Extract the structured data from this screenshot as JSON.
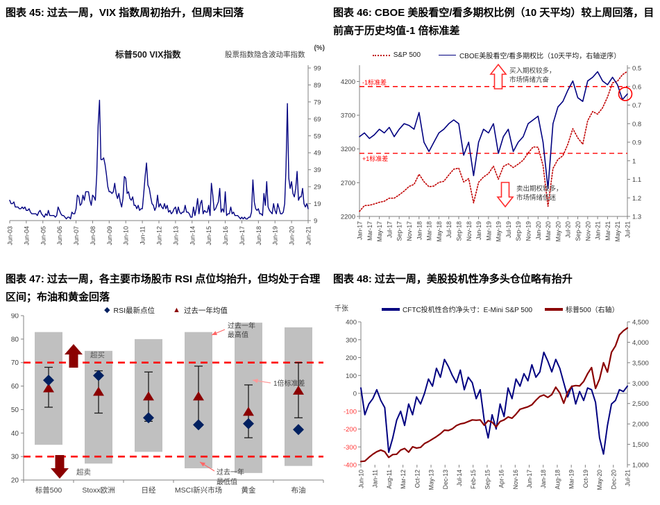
{
  "chart_data": [
    {
      "id": "fig45",
      "type": "line",
      "title_label": "图表 45:",
      "title": "过去一周，VIX 指数周初抬升，但周末回落",
      "series_title": "标普500 VIX指数",
      "subtitle": "股票指数隐含波动率指数",
      "unit": "(%)",
      "ylim": [
        9,
        99
      ],
      "yticks": [
        99,
        89,
        79,
        69,
        59,
        49,
        39,
        29,
        19,
        9
      ],
      "y_axis_side": "right",
      "x_tick_labels": [
        "Jun-03",
        "Jun-04",
        "Jun-05",
        "Jun-06",
        "Jun-07",
        "Jun-08",
        "Jun-09",
        "Jun-10",
        "Jun-11",
        "Jun-12",
        "Jun-13",
        "Jun-14",
        "Jun-15",
        "Jun-16",
        "Jun-17",
        "Jun-18",
        "Jun-19",
        "Jun-20",
        "Jun-21"
      ],
      "series": [
        {
          "name": "标普500 VIX指数",
          "color": "#000080",
          "freq": "monthly, Jun-2003 to Jun-2021",
          "values": [
            21,
            19,
            19,
            20,
            17,
            17,
            17,
            16,
            16,
            17,
            16,
            17,
            15,
            15,
            16,
            14,
            13,
            13,
            13,
            13,
            12,
            14,
            15,
            13,
            12,
            11,
            13,
            12,
            15,
            12,
            12,
            12,
            12,
            11,
            12,
            17,
            15,
            13,
            12,
            12,
            11,
            10,
            11,
            11,
            10,
            14,
            13,
            13,
            16,
            24,
            23,
            18,
            19,
            24,
            21,
            26,
            26,
            26,
            21,
            18,
            24,
            23,
            21,
            36,
            65,
            80,
            45,
            45,
            46,
            42,
            36,
            29,
            26,
            26,
            25,
            26,
            31,
            25,
            22,
            25,
            20,
            17,
            22,
            35,
            34,
            25,
            26,
            22,
            21,
            23,
            18,
            18,
            16,
            18,
            15,
            16,
            16,
            25,
            35,
            43,
            30,
            28,
            23,
            19,
            18,
            15,
            17,
            24,
            17,
            19,
            17,
            16,
            19,
            16,
            18,
            14,
            15,
            13,
            14,
            16,
            17,
            13,
            17,
            14,
            13,
            14,
            14,
            18,
            14,
            14,
            13,
            11,
            11,
            17,
            12,
            16,
            22,
            13,
            19,
            21,
            13,
            15,
            14,
            14,
            18,
            12,
            31,
            24,
            15,
            16,
            18,
            20,
            28,
            14,
            16,
            14,
            26,
            12,
            13,
            13,
            17,
            13,
            14,
            12,
            12,
            12,
            11,
            10,
            11,
            10,
            11,
            10,
            10,
            11,
            11,
            14,
            33,
            20,
            16,
            15,
            16,
            13,
            13,
            12,
            25,
            18,
            32,
            17,
            15,
            14,
            13,
            19,
            15,
            13,
            19,
            16,
            13,
            13,
            14,
            19,
            40,
            78,
            34,
            28,
            32,
            25,
            23,
            28,
            38,
            21,
            23,
            23,
            28,
            19,
            17,
            19,
            16
          ]
        }
      ]
    },
    {
      "id": "fig46",
      "type": "line-dual",
      "title_label": "图表 46:",
      "title": "CBOE 美股看空/看多期权比例（10 天平均）较上周回落，目前高于历史均值-1 倍标准差",
      "legend": [
        {
          "label": "S&P 500",
          "color": "#C00000",
          "style": "dotted"
        },
        {
          "label": "CBOE美股看空/看多期权比（10天平均，右轴逆序）",
          "color": "#000080",
          "style": "solid"
        }
      ],
      "left_axis": {
        "lim": [
          2200,
          4400
        ],
        "ticks": [
          2200,
          2700,
          3200,
          3700,
          4200
        ]
      },
      "right_axis": {
        "lim": [
          0.5,
          1.3
        ],
        "ticks": [
          "0.5",
          "0.6",
          "0.7",
          "0.8",
          "0.9",
          "1",
          "1.1",
          "1.2",
          "1.3"
        ],
        "reversed": true
      },
      "x_tick_labels": [
        "Jan-17",
        "Mar-17",
        "May-17",
        "Jul-17",
        "Sep-17",
        "Nov-17",
        "Jan-18",
        "Mar-18",
        "May-18",
        "Jul-18",
        "Sep-18",
        "Nov-18",
        "Jan-19",
        "Mar-19",
        "May-19",
        "Jul-19",
        "Sep-19",
        "Nov-19",
        "Jan-20",
        "Mar-20",
        "May-20",
        "Jul-20",
        "Sep-20",
        "Nov-20",
        "Jan-21",
        "Mar-21",
        "May-21",
        "Jul-21"
      ],
      "std_lines": [
        {
          "label": "-1标准差",
          "value": 0.6,
          "color": "#FF0000"
        },
        {
          "label": "+1标准差",
          "value": 0.96,
          "color": "#FF0000"
        }
      ],
      "annotations": [
        {
          "arrow": "up",
          "lines": [
            "买入期权较多，",
            "市场情绪亢奋"
          ]
        },
        {
          "arrow": "down",
          "lines": [
            "卖出期权较多，",
            "市场情绪低迷"
          ]
        }
      ],
      "highlight_last_point": {
        "series": 1,
        "color": "#FF0000"
      },
      "series": [
        {
          "name": "S&P 500",
          "axis": "left",
          "color": "#C00000",
          "style": "dotted",
          "freq": "monthly, Jan-2017 to Jul-2021",
          "values": [
            2275,
            2360,
            2365,
            2385,
            2410,
            2425,
            2470,
            2470,
            2520,
            2575,
            2645,
            2675,
            2825,
            2715,
            2640,
            2650,
            2705,
            2720,
            2815,
            2900,
            2915,
            2710,
            2760,
            2400,
            2705,
            2785,
            2835,
            2945,
            2750,
            2940,
            2980,
            2925,
            2975,
            3035,
            3140,
            3230,
            3225,
            2955,
            2350,
            2910,
            3045,
            3100,
            3270,
            3500,
            3365,
            3270,
            3620,
            3755,
            3715,
            3810,
            3970,
            4180,
            4205,
            4300,
            4350
          ]
        },
        {
          "name": "CBOE美股看空/看多期权比（10天平均，右轴逆序）",
          "axis": "right",
          "color": "#000080",
          "style": "solid",
          "freq": "monthly, Jan-2017 to Jul-2021",
          "values": [
            0.87,
            0.85,
            0.88,
            0.86,
            0.83,
            0.85,
            0.82,
            0.87,
            0.83,
            0.8,
            0.81,
            0.83,
            0.74,
            0.9,
            0.95,
            0.9,
            0.85,
            0.83,
            0.8,
            0.78,
            0.8,
            0.97,
            0.9,
            1.08,
            0.9,
            0.83,
            0.85,
            0.8,
            0.96,
            0.87,
            0.83,
            0.95,
            0.9,
            0.87,
            0.8,
            0.78,
            0.76,
            0.9,
            1.15,
            0.8,
            0.71,
            0.68,
            0.62,
            0.57,
            0.66,
            0.68,
            0.57,
            0.55,
            0.52,
            0.57,
            0.59,
            0.55,
            0.59,
            0.67,
            0.64
          ]
        }
      ]
    },
    {
      "id": "fig47",
      "type": "range-marker",
      "title_label": "图表 47:",
      "title": "过去一周，各主要市场股市 RSI 点位均抬升，但均处于合理区间；布油和黄金回落",
      "legend": [
        {
          "label": "RSI最新点位",
          "marker": "diamond",
          "color": "#002060"
        },
        {
          "label": "过去一年均值",
          "marker": "triangle",
          "color": "#8B0000"
        }
      ],
      "categories": [
        "标普500",
        "Stoxx欧洲",
        "日经",
        "MSCI新兴市场",
        "黄金",
        "布油"
      ],
      "ylim": [
        20,
        90
      ],
      "yticks": [
        90,
        80,
        70,
        60,
        50,
        40,
        30,
        20
      ],
      "thresholds": {
        "overbought": 70,
        "oversold": 30,
        "color": "#FF0000"
      },
      "range_min": [
        35,
        27,
        32,
        25,
        23,
        26
      ],
      "range_max": [
        83,
        75,
        80,
        83,
        87,
        85
      ],
      "mean": [
        59,
        57.5,
        55.5,
        55.5,
        49,
        58
      ],
      "std_low": [
        51,
        48.5,
        45,
        43,
        38,
        46.5
      ],
      "std_high": [
        68,
        66.5,
        66,
        68.5,
        60.5,
        70
      ],
      "latest": [
        62.5,
        64.5,
        46.5,
        43.5,
        44,
        41.5
      ],
      "annotations": {
        "overbought": "超买",
        "oversold": "超卖",
        "year_high": [
          "过去一年",
          "最高值"
        ],
        "year_low": [
          "过去一年",
          "最低值"
        ],
        "one_std": "1倍标准差"
      },
      "bar_color": "#C0C0C0"
    },
    {
      "id": "fig48",
      "type": "line-dual",
      "title_label": "图表 48:",
      "title": "过去一周，美股投机性净多头仓位略有抬升",
      "unit_left": "千张",
      "legend": [
        {
          "label": "CFTC投机性合约净头寸：E-Mini S&P 500",
          "color": "#000080"
        },
        {
          "label": "标普500（右轴）",
          "color": "#8B0000"
        }
      ],
      "left_axis": {
        "lim": [
          -400,
          400
        ],
        "ticks": [
          400,
          300,
          200,
          100,
          0,
          -100,
          -200,
          -300,
          -400
        ],
        "negative_color": "#FF3333"
      },
      "right_axis": {
        "lim": [
          1000,
          4500
        ],
        "ticks": [
          "4,500",
          "4,000",
          "3,500",
          "3,000",
          "2,500",
          "2,000",
          "1,500",
          "1,000"
        ]
      },
      "x_tick_labels": [
        "Jun-10",
        "Jan-11",
        "Aug-11",
        "Mar-12",
        "Oct-12",
        "May-13",
        "Dec-13",
        "Jul-14",
        "Feb-15",
        "Sep-15",
        "Apr-16",
        "Nov-16",
        "Jun-17",
        "Jan-18",
        "Aug-18",
        "Mar-19",
        "Oct-19",
        "May-20",
        "Dec-20",
        "Jul-21"
      ],
      "series": [
        {
          "name": "CFTC投机性合约净头寸：E-Mini S&P 500",
          "axis": "left",
          "color": "#000080",
          "freq": "bimonthly, Jun-2010 to Jul-2021",
          "values": [
            30,
            -120,
            -60,
            -30,
            20,
            -40,
            -80,
            -330,
            -250,
            -150,
            -100,
            -180,
            -60,
            -120,
            -20,
            -60,
            0,
            80,
            40,
            140,
            90,
            190,
            150,
            100,
            60,
            130,
            20,
            90,
            60,
            -30,
            20,
            -150,
            -250,
            -120,
            -200,
            -60,
            -130,
            30,
            -30,
            80,
            40,
            110,
            70,
            160,
            90,
            120,
            230,
            180,
            120,
            190,
            140,
            60,
            -20,
            40,
            -60,
            10,
            -40,
            30,
            20,
            -50,
            -250,
            -340,
            -180,
            -60,
            -40,
            20,
            10,
            40
          ]
        },
        {
          "name": "标普500（右轴）",
          "axis": "right",
          "color": "#8B0000",
          "freq": "bimonthly, Jun-2010 to Jul-2021",
          "values": [
            1080,
            1090,
            1180,
            1258,
            1320,
            1360,
            1320,
            1180,
            1250,
            1258,
            1360,
            1400,
            1310,
            1440,
            1410,
            1426,
            1520,
            1570,
            1630,
            1690,
            1760,
            1848,
            1840,
            1880,
            1960,
            2000,
            2020,
            2059,
            2100,
            2090,
            2100,
            1970,
            2080,
            2044,
            1930,
            2060,
            2100,
            2170,
            2140,
            2239,
            2360,
            2390,
            2420,
            2470,
            2580,
            2674,
            2710,
            2650,
            2720,
            2900,
            2760,
            2507,
            2780,
            2920,
            2940,
            2930,
            3040,
            3231,
            3380,
            2870,
            3100,
            3500,
            3270,
            3756,
            3910,
            4180,
            4280,
            4350
          ]
        }
      ]
    }
  ]
}
